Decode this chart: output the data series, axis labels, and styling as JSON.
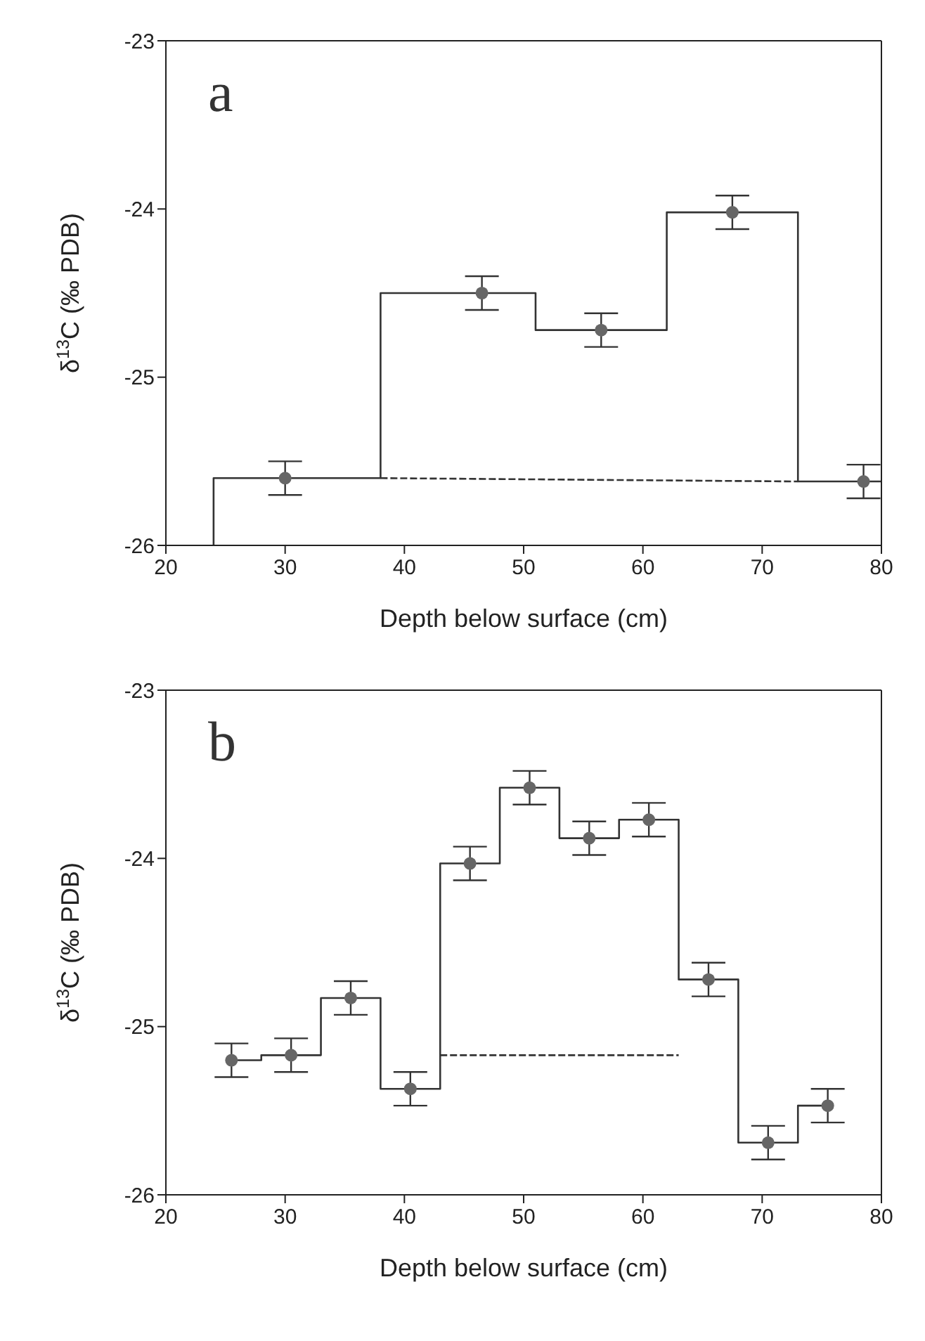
{
  "chart_data": [
    {
      "type": "scatter",
      "xlabel": "Depth below surface (cm)",
      "ylabel": "δ$^{13}$C (‰ PDB)",
      "annotations": [
        "a"
      ],
      "xlim": [
        20,
        80
      ],
      "ylim": [
        -26,
        -23
      ],
      "xticks": [
        20,
        30,
        40,
        50,
        60,
        70,
        80
      ],
      "yticks": [
        -26,
        -25,
        -24,
        -23
      ],
      "series": [
        {
          "type": "line",
          "color": "#333333",
          "marker": "none",
          "line_style": "solid",
          "x": [
            24,
            24,
            38,
            38,
            51,
            51,
            62,
            62,
            73,
            73,
            80
          ],
          "values": [
            -26,
            -25.6,
            -25.6,
            -24.5,
            -24.5,
            -24.72,
            -24.72,
            -24.02,
            -24.02,
            -25.62,
            -25.62
          ]
        },
        {
          "type": "line",
          "color": "#333333",
          "marker": "none",
          "line_style": "dashed",
          "x": [
            38,
            73
          ],
          "values": [
            -25.6,
            -25.62
          ]
        },
        {
          "color": "#666666",
          "marker": "circle",
          "x": [
            30,
            46.5,
            56.5,
            67.5,
            78.5
          ],
          "values": [
            -25.6,
            -24.5,
            -24.72,
            -24.02,
            -25.62
          ],
          "errors": [
            0.1,
            0.1,
            0.1,
            0.1,
            0.1
          ]
        }
      ]
    },
    {
      "type": "scatter",
      "xlabel": "Depth below surface (cm)",
      "ylabel": "δ$^{13}$C (‰ PDB)",
      "annotations": [
        "b"
      ],
      "xlim": [
        20,
        80
      ],
      "ylim": [
        -26,
        -23
      ],
      "xticks": [
        20,
        30,
        40,
        50,
        60,
        70,
        80
      ],
      "yticks": [
        -26,
        -25,
        -24,
        -23
      ],
      "series": [
        {
          "type": "line",
          "color": "#333333",
          "marker": "none",
          "line_style": "solid",
          "x": [
            25.5,
            28,
            28,
            33,
            33,
            38,
            38,
            43,
            43,
            48,
            48,
            53,
            53,
            58,
            58,
            63,
            63,
            68,
            68,
            73,
            73,
            75.5
          ],
          "values": [
            -25.2,
            -25.2,
            -25.17,
            -25.17,
            -24.83,
            -24.83,
            -25.37,
            -25.37,
            -24.03,
            -24.03,
            -23.58,
            -23.58,
            -23.88,
            -23.88,
            -23.77,
            -23.77,
            -24.72,
            -24.72,
            -25.69,
            -25.69,
            -25.47,
            -25.47
          ]
        },
        {
          "type": "line",
          "color": "#333333",
          "marker": "none",
          "line_style": "dashed",
          "x": [
            43,
            63
          ],
          "values": [
            -25.17,
            -25.17
          ]
        },
        {
          "color": "#666666",
          "marker": "circle",
          "x": [
            25.5,
            30.5,
            35.5,
            40.5,
            45.5,
            50.5,
            55.5,
            60.5,
            65.5,
            70.5,
            75.5
          ],
          "values": [
            -25.2,
            -25.17,
            -24.83,
            -25.37,
            -24.03,
            -23.58,
            -23.88,
            -23.77,
            -24.72,
            -25.69,
            -25.47
          ],
          "errors": [
            0.1,
            0.1,
            0.1,
            0.1,
            0.1,
            0.1,
            0.1,
            0.1,
            0.1,
            0.1,
            0.1
          ]
        }
      ]
    }
  ]
}
